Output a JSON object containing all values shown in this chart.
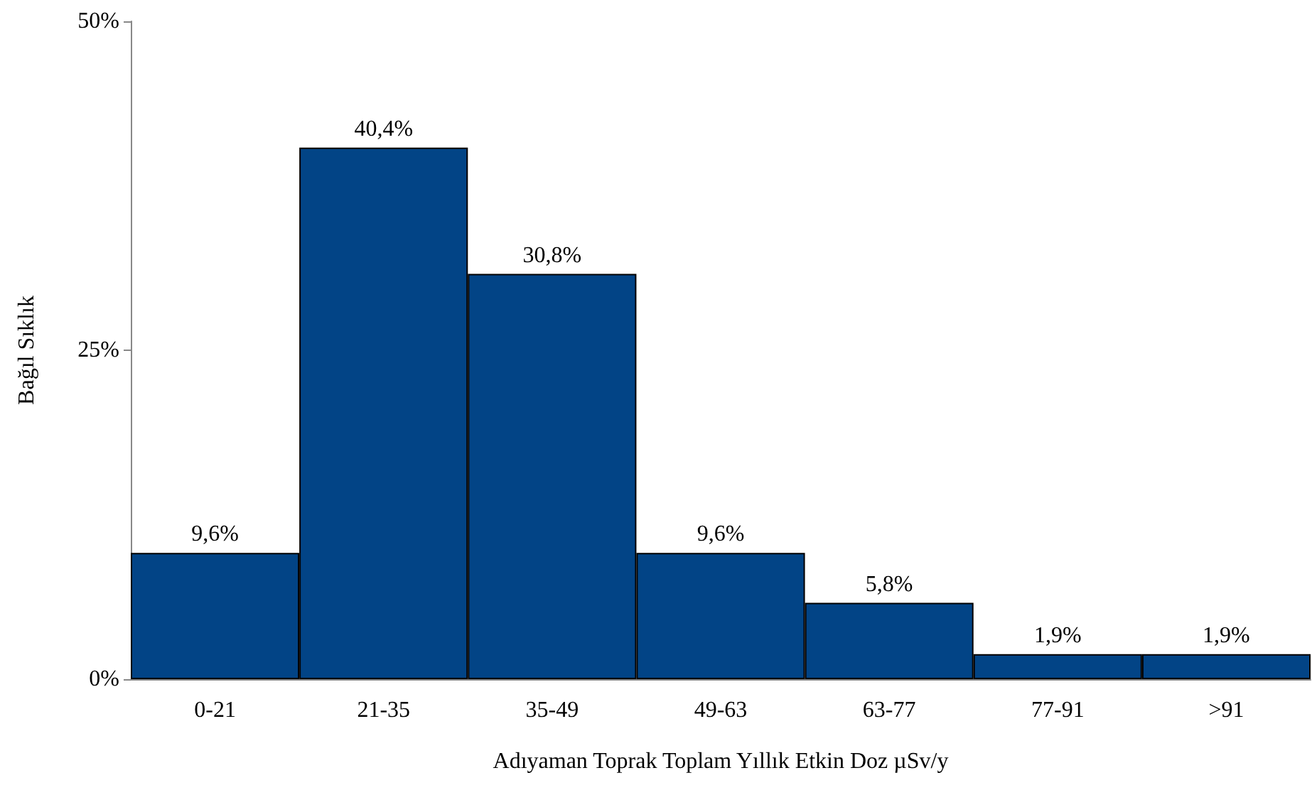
{
  "chart_data": {
    "type": "bar",
    "xlabel": "Adıyaman Toprak Toplam Yıllık Etkin Doz µSv/y",
    "ylabel": "Bağıl Sıklık",
    "categories": [
      "0-21",
      "21-35",
      "35-49",
      "49-63",
      "63-77",
      "77-91",
      ">91"
    ],
    "values": [
      9.6,
      40.4,
      30.8,
      9.6,
      5.8,
      1.9,
      1.9
    ],
    "value_labels": [
      "9,6%",
      "40,4%",
      "30,8%",
      "9,6%",
      "5,8%",
      "1,9%",
      "1,9%"
    ],
    "color": "#024486",
    "ylim": [
      0,
      50
    ],
    "yticks": [
      {
        "value": 0,
        "label": "0%"
      },
      {
        "value": 25,
        "label": "25%"
      },
      {
        "value": 50,
        "label": "50%"
      }
    ],
    "grid": false
  }
}
